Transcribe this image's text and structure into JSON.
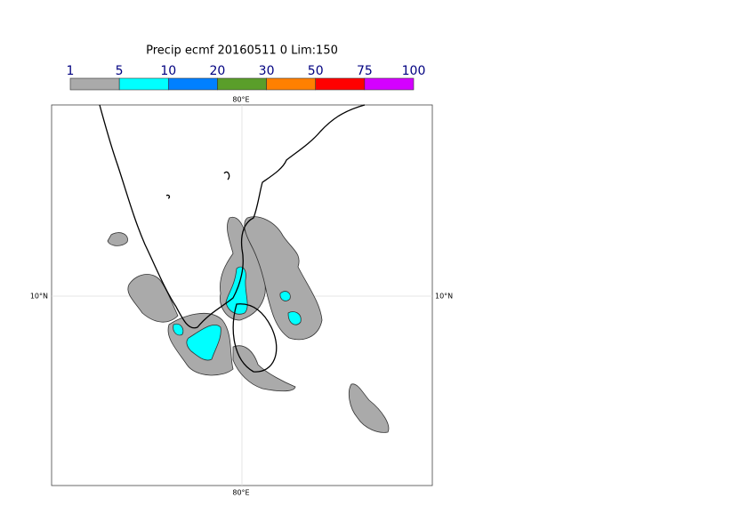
{
  "title": "Precip ecmf 20160511 0 Lim:150",
  "legend": {
    "labels": [
      "1",
      "5",
      "10",
      "20",
      "30",
      "50",
      "75",
      "100"
    ],
    "colors": [
      "#aaaaaa",
      "#00ffff",
      "#0080ff",
      "#5a9e2a",
      "#ff8000",
      "#ff0000",
      "#d400ff"
    ]
  },
  "map": {
    "top_label": "80°E",
    "bottom_label": "80°E",
    "left_label": "10°N",
    "right_label": "10°N"
  }
}
